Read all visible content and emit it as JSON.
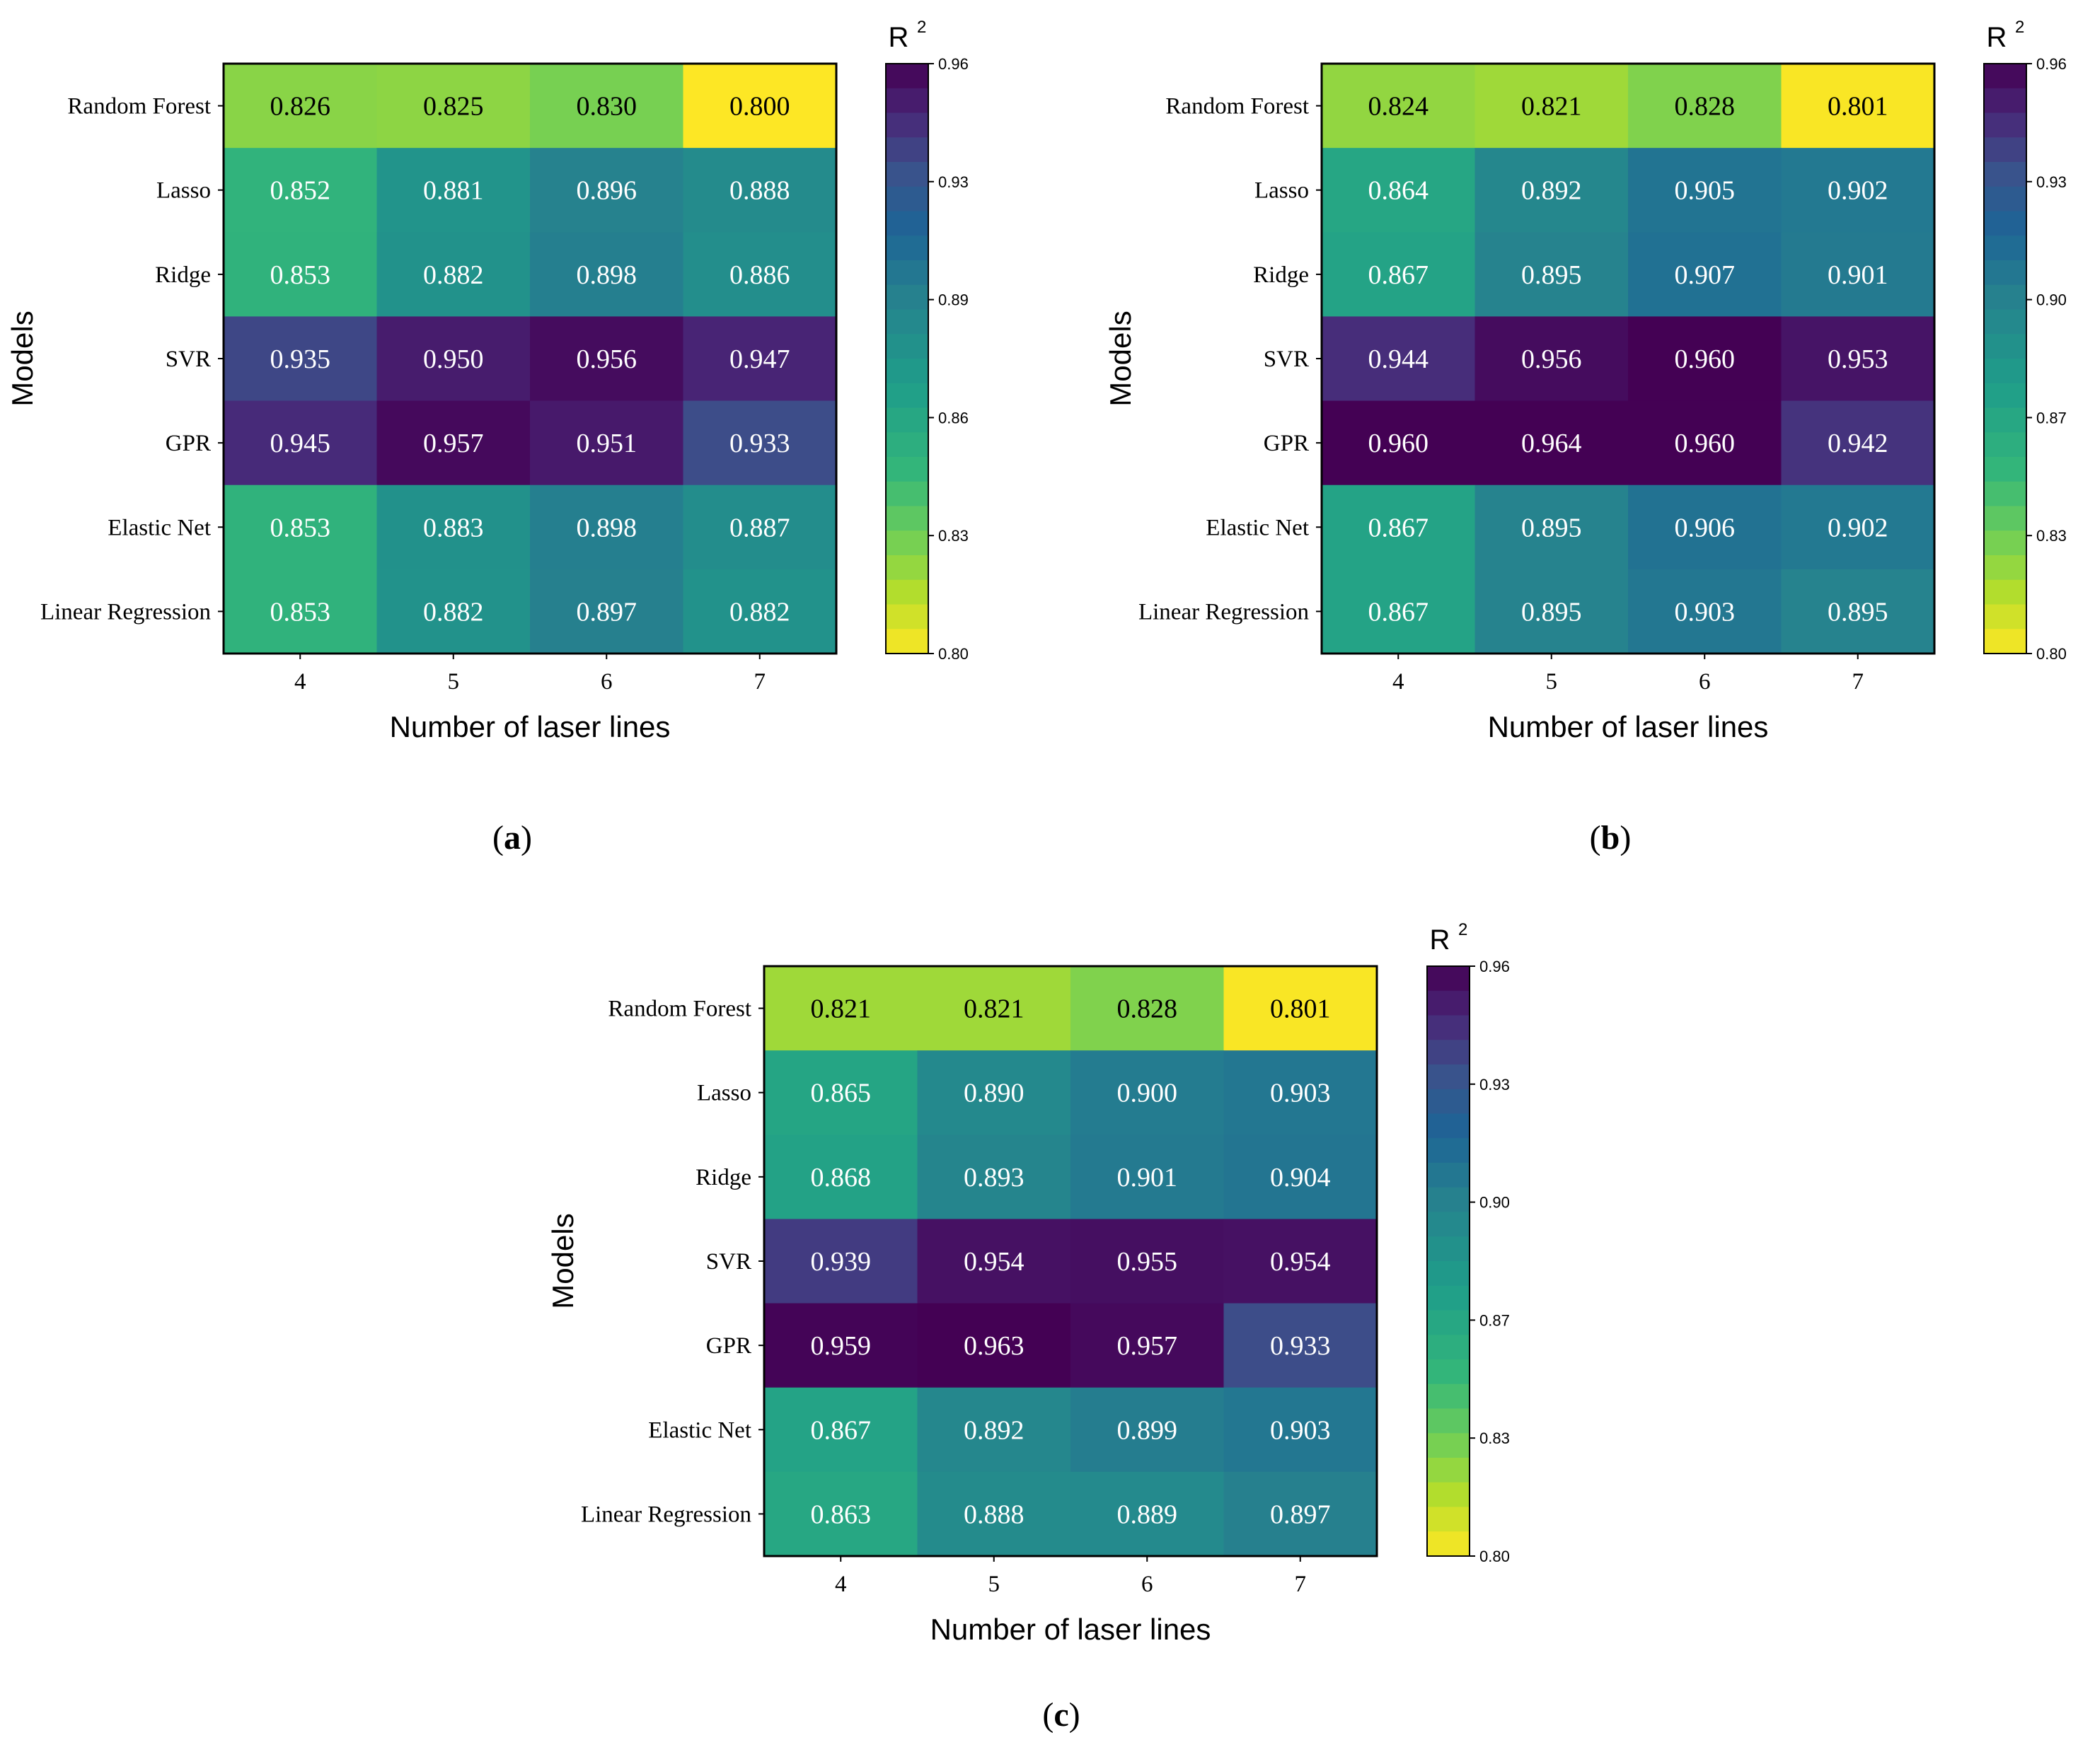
{
  "chart_data": [
    {
      "type": "heatmap",
      "panel_label": "a",
      "ylabel": "Models",
      "xlabel": "Number of laser lines",
      "colorbar": {
        "title": "R",
        "title_sup": "2",
        "ticks": [
          "0.96",
          "0.93",
          "0.89",
          "0.86",
          "0.83",
          "0.80"
        ],
        "range": [
          0.8,
          0.96
        ]
      },
      "rows": [
        "Random Forest",
        "Lasso",
        "Ridge",
        "SVR",
        "GPR",
        "Elastic Net",
        "Linear Regression"
      ],
      "columns": [
        "4",
        "5",
        "6",
        "7"
      ],
      "values": [
        [
          0.826,
          0.825,
          0.83,
          0.8
        ],
        [
          0.852,
          0.881,
          0.896,
          0.888
        ],
        [
          0.853,
          0.882,
          0.898,
          0.886
        ],
        [
          0.935,
          0.95,
          0.956,
          0.947
        ],
        [
          0.945,
          0.957,
          0.951,
          0.933
        ],
        [
          0.853,
          0.883,
          0.898,
          0.887
        ],
        [
          0.853,
          0.882,
          0.897,
          0.882
        ]
      ]
    },
    {
      "type": "heatmap",
      "panel_label": "b",
      "ylabel": "Models",
      "xlabel": "Number of laser lines",
      "colorbar": {
        "title": "R",
        "title_sup": "2",
        "ticks": [
          "0.96",
          "0.93",
          "0.90",
          "0.87",
          "0.83",
          "0.80"
        ],
        "range": [
          0.8,
          0.96
        ]
      },
      "rows": [
        "Random Forest",
        "Lasso",
        "Ridge",
        "SVR",
        "GPR",
        "Elastic Net",
        "Linear Regression"
      ],
      "columns": [
        "4",
        "5",
        "6",
        "7"
      ],
      "values": [
        [
          0.824,
          0.821,
          0.828,
          0.801
        ],
        [
          0.864,
          0.892,
          0.905,
          0.902
        ],
        [
          0.867,
          0.895,
          0.907,
          0.901
        ],
        [
          0.944,
          0.956,
          0.96,
          0.953
        ],
        [
          0.96,
          0.964,
          0.96,
          0.942
        ],
        [
          0.867,
          0.895,
          0.906,
          0.902
        ],
        [
          0.867,
          0.895,
          0.903,
          0.895
        ]
      ]
    },
    {
      "type": "heatmap",
      "panel_label": "c",
      "ylabel": "Models",
      "xlabel": "Number of laser lines",
      "colorbar": {
        "title": "R",
        "title_sup": "2",
        "ticks": [
          "0.96",
          "0.93",
          "0.90",
          "0.87",
          "0.83",
          "0.80"
        ],
        "range": [
          0.8,
          0.96
        ]
      },
      "rows": [
        "Random Forest",
        "Lasso",
        "Ridge",
        "SVR",
        "GPR",
        "Elastic Net",
        "Linear Regression"
      ],
      "columns": [
        "4",
        "5",
        "6",
        "7"
      ],
      "values": [
        [
          0.821,
          0.821,
          0.828,
          0.801
        ],
        [
          0.865,
          0.89,
          0.9,
          0.903
        ],
        [
          0.868,
          0.893,
          0.901,
          0.904
        ],
        [
          0.939,
          0.954,
          0.955,
          0.954
        ],
        [
          0.959,
          0.963,
          0.957,
          0.933
        ],
        [
          0.867,
          0.892,
          0.899,
          0.903
        ],
        [
          0.863,
          0.888,
          0.889,
          0.897
        ]
      ]
    }
  ]
}
